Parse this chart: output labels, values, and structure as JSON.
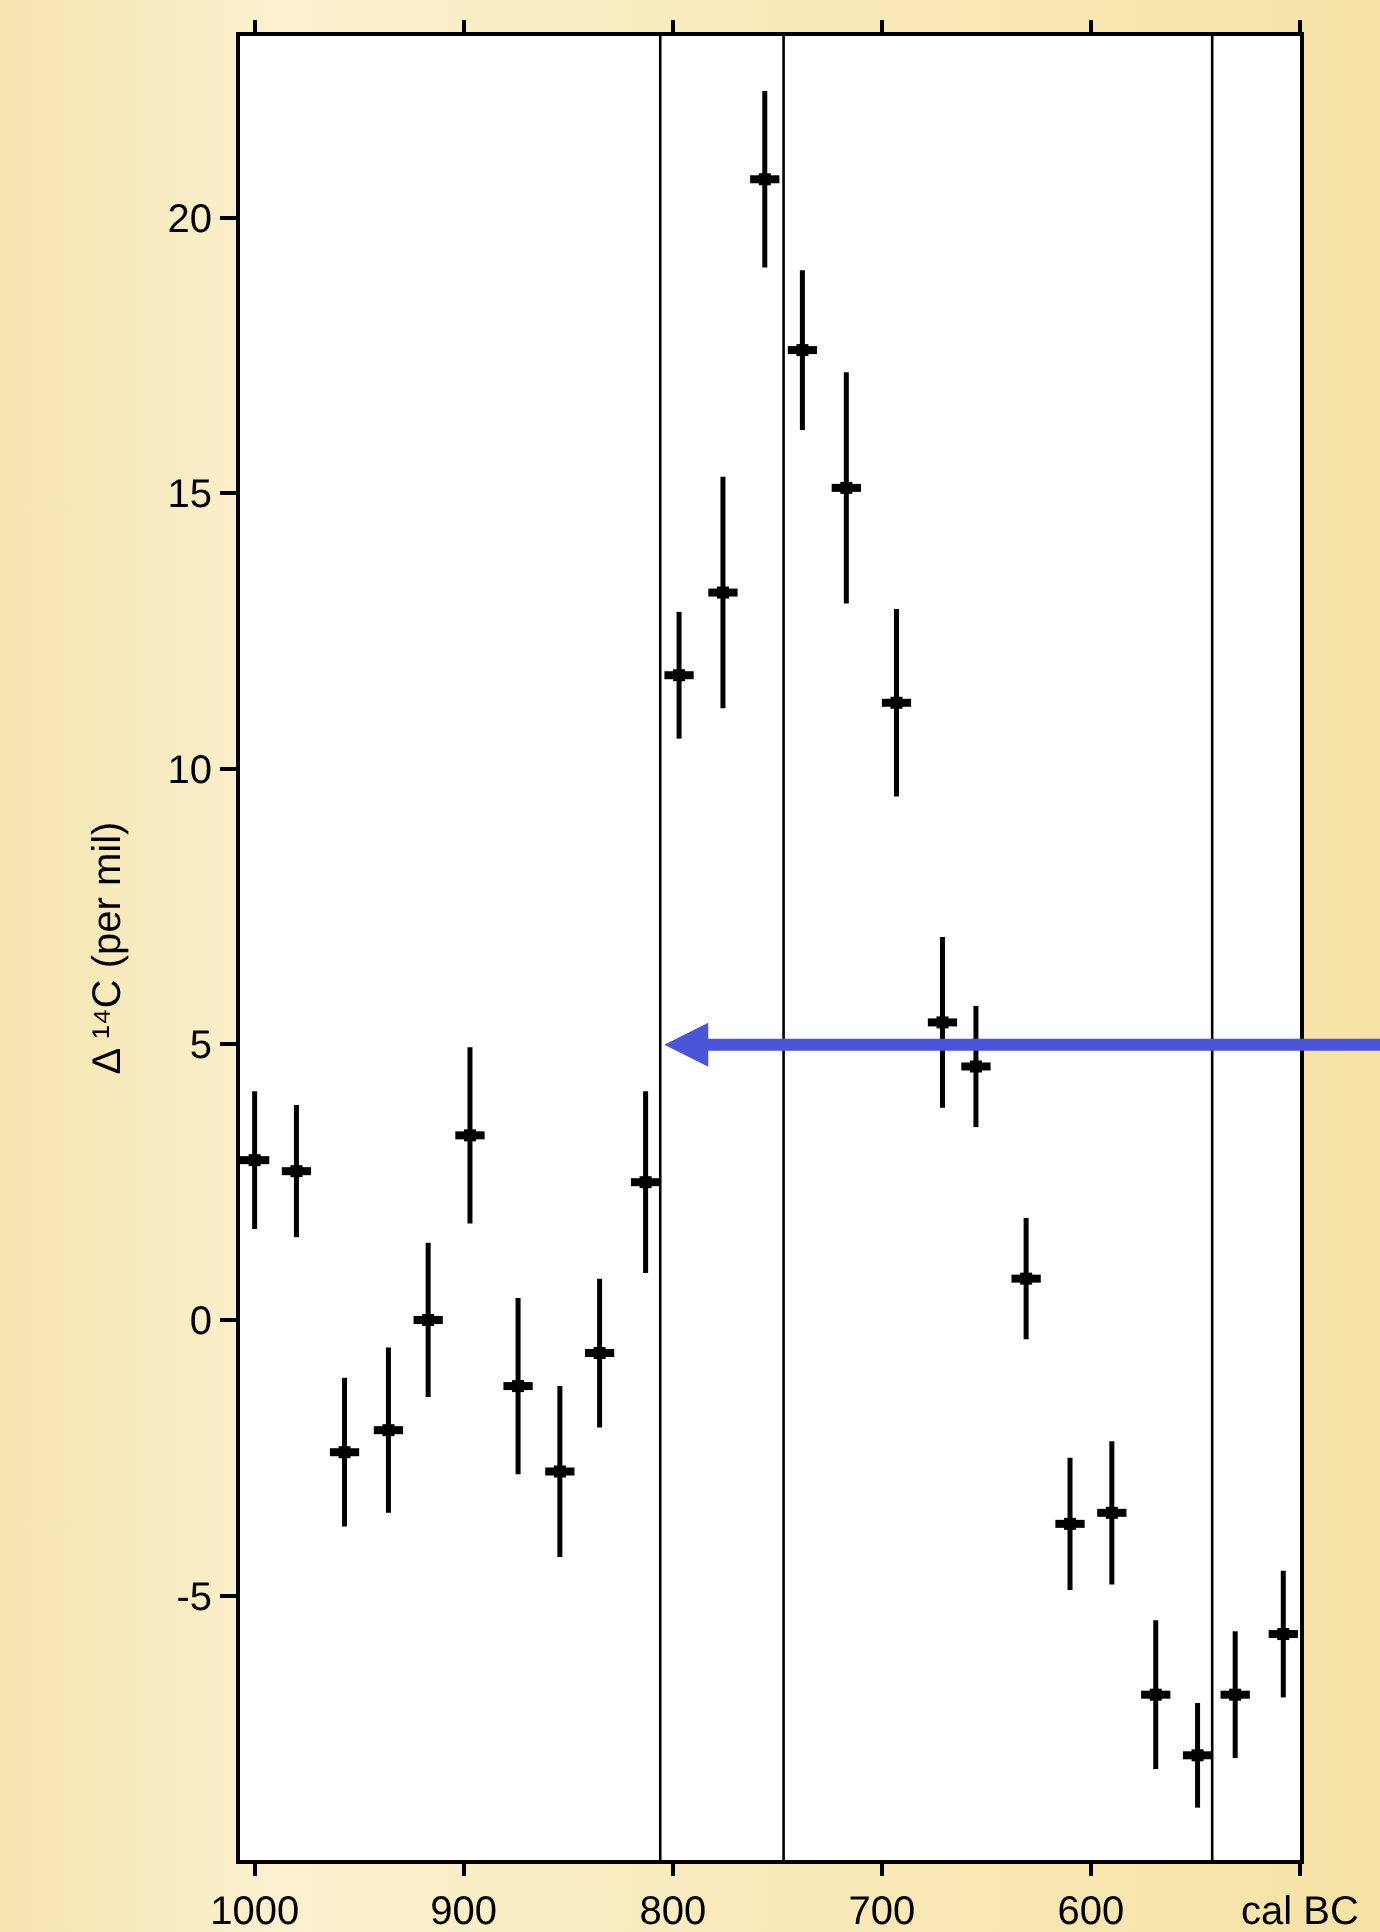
{
  "chart_data": {
    "type": "scatter",
    "ylabel": "Δ ¹⁴C (per mil)",
    "x": [
      1000,
      980,
      957,
      936,
      917,
      897,
      874,
      854,
      835,
      813,
      797,
      776,
      756,
      738,
      717,
      693,
      671,
      655,
      631,
      610,
      590,
      569,
      549,
      531,
      508
    ],
    "series": [
      {
        "color": "#000000",
        "values": [
          2.9,
          2.7,
          -2.4,
          -2.0,
          0,
          3.35,
          -1.2,
          -2.75,
          -0.6,
          2.5,
          11.7,
          13.2,
          20.7,
          17.6,
          15.1,
          11.2,
          5.4,
          4.6,
          0.75,
          -3.7,
          -3.5,
          -6.8,
          -7.9,
          -6.8,
          -5.7
        ],
        "xerrors": [
          7,
          7,
          7,
          7,
          7,
          7,
          7,
          7,
          7,
          7,
          7,
          7,
          7,
          7,
          7,
          7,
          7,
          7,
          7,
          7,
          7,
          7,
          7,
          7,
          7
        ],
        "errors": [
          1.25,
          1.2,
          1.35,
          1.5,
          1.4,
          1.6,
          1.6,
          1.55,
          1.35,
          1.65,
          1.15,
          2.1,
          1.6,
          1.45,
          2.1,
          1.7,
          1.55,
          1.1,
          1.1,
          1.2,
          1.3,
          1.35,
          0.95,
          1.15,
          1.15
        ]
      }
    ],
    "xlim": [
      1007,
      500
    ],
    "ylim": [
      -9.8,
      23.3
    ],
    "xticks": [
      1000,
      900,
      800,
      700,
      600,
      {
        "value": 500,
        "label": "cal BC"
      }
    ],
    "yticks": [
      -5,
      0,
      5,
      10,
      15,
      20
    ],
    "ref_lines": [
      {
        "axis": "x",
        "value": 806,
        "color": "#000000"
      },
      {
        "axis": "x",
        "value": 747,
        "color": "#000000"
      },
      {
        "axis": "x",
        "value": 542,
        "color": "#000000"
      }
    ]
  }
}
